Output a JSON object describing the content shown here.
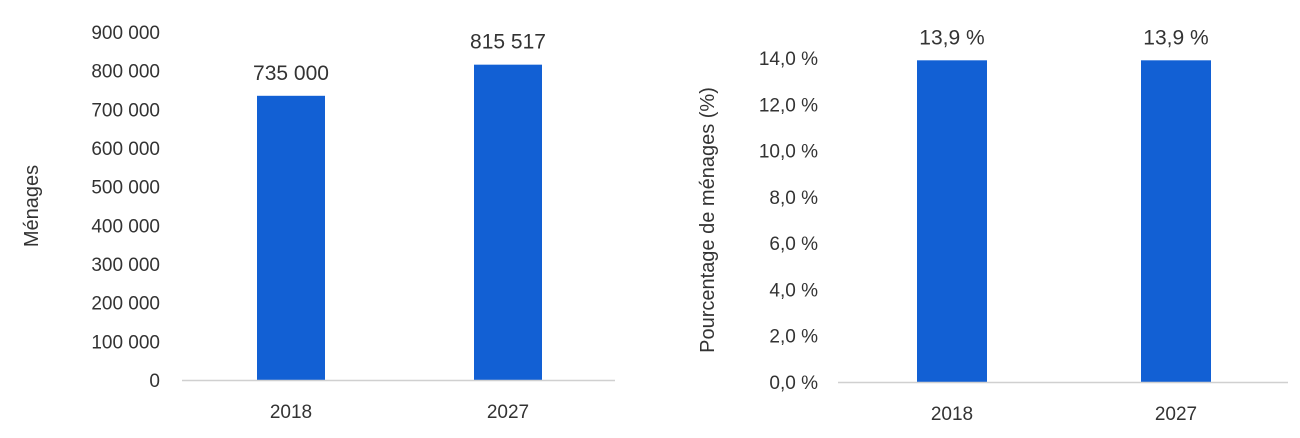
{
  "chart_data": [
    {
      "type": "bar",
      "categories": [
        "2018",
        "2027"
      ],
      "values": [
        735000,
        815517
      ],
      "data_labels": [
        "735 000",
        "815 517"
      ],
      "ylabel": "Ménages",
      "ylim": [
        0,
        900000
      ],
      "yticks": [
        0,
        100000,
        200000,
        300000,
        400000,
        500000,
        600000,
        700000,
        800000,
        900000
      ],
      "ytick_labels": [
        "0",
        "100 000",
        "200 000",
        "300 000",
        "400 000",
        "500 000",
        "600 000",
        "700 000",
        "800 000",
        "900 000"
      ],
      "grid": false,
      "bar_color": "#1260D4"
    },
    {
      "type": "bar",
      "categories": [
        "2018",
        "2027"
      ],
      "values": [
        13.9,
        13.9
      ],
      "data_labels": [
        "13,9 %",
        "13,9 %"
      ],
      "ylabel": "Pourcentage de ménages (%)",
      "ylim": [
        0,
        14
      ],
      "yticks": [
        0,
        2,
        4,
        6,
        8,
        10,
        12,
        14
      ],
      "ytick_labels": [
        "0,0 %",
        "2,0 %",
        "4,0 %",
        "6,0 %",
        "8,0 %",
        "10,0 %",
        "12,0 %",
        "14,0 %"
      ],
      "grid": false,
      "bar_color": "#1260D4"
    }
  ]
}
